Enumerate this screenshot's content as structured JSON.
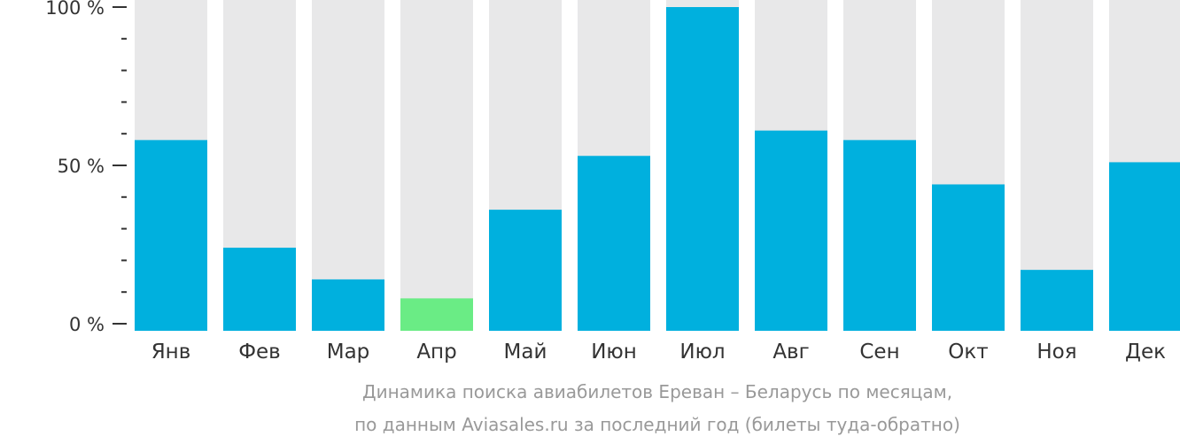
{
  "chart_data": {
    "type": "bar",
    "categories": [
      "Янв",
      "Фев",
      "Мар",
      "Апр",
      "Май",
      "Июн",
      "Июл",
      "Авг",
      "Сен",
      "Окт",
      "Ноя",
      "Дек"
    ],
    "values": [
      58,
      24,
      14,
      8,
      36,
      53,
      100,
      61,
      58,
      44,
      17,
      51
    ],
    "ylim": [
      0,
      100
    ],
    "y_tick_labels": [
      {
        "value": 100,
        "label": "100 %"
      },
      {
        "value": 50,
        "label": "50 %"
      },
      {
        "value": 0,
        "label": "0 %"
      }
    ],
    "y_minor_ticks": [
      10,
      20,
      30,
      40,
      60,
      70,
      80,
      90
    ],
    "highlight_category": "Апр",
    "grid": false,
    "legend": "none"
  },
  "caption": {
    "line1": "Динамика поиска авиабилетов Ереван – Беларусь по месяцам,",
    "line2": "по данным Aviasales.ru за последний год (билеты туда-обратно)"
  },
  "colors": {
    "bar": "#00b0de",
    "bar_highlight": "#6aec85",
    "bar_background": "#e8e8e9",
    "axis": "#333333",
    "caption": "#999999"
  }
}
